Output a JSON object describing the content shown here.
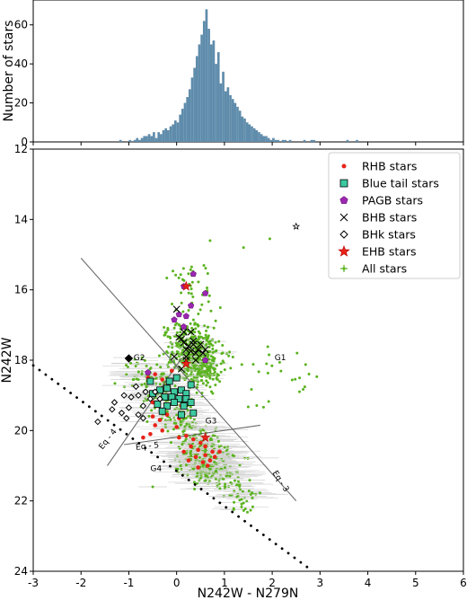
{
  "chart_data": [
    {
      "type": "histogram",
      "ylabel": "Number of stars",
      "ylim": [
        0,
        70
      ],
      "xlim": [
        -3,
        6
      ],
      "yticks": [
        "0",
        "20",
        "40",
        "60"
      ],
      "bin_start": -1.2,
      "bin_width": 0.05,
      "counts": [
        1,
        0,
        0,
        0,
        1,
        0,
        1,
        2,
        1,
        2,
        3,
        3,
        4,
        3,
        5,
        2,
        5,
        4,
        6,
        7,
        6,
        8,
        9,
        11,
        10,
        14,
        17,
        20,
        23,
        27,
        33,
        38,
        44,
        50,
        55,
        62,
        68,
        58,
        50,
        52,
        40,
        46,
        30,
        36,
        26,
        28,
        24,
        22,
        20,
        18,
        16,
        13,
        12,
        10,
        9,
        8,
        7,
        6,
        5,
        4,
        3,
        3,
        2,
        1,
        2,
        1,
        1,
        0,
        1,
        1,
        0,
        1,
        0,
        0,
        0,
        0,
        0,
        1,
        0,
        0,
        1,
        1,
        0,
        0,
        0,
        0,
        0,
        0,
        0,
        0,
        0,
        0,
        0,
        0,
        0,
        1,
        0,
        0,
        0,
        1
      ],
      "color": "#5f8cab"
    },
    {
      "type": "scatter",
      "xlabel": "N242W - N279N",
      "ylabel": "N242W",
      "xlim": [
        -3,
        6
      ],
      "ylim": [
        24,
        12
      ],
      "xticks": [
        "-3",
        "-2",
        "-1",
        "0",
        "1",
        "2",
        "3",
        "4",
        "5",
        "6"
      ],
      "yticks": [
        "12",
        "14",
        "16",
        "18",
        "20",
        "22",
        "24"
      ],
      "legend_position": "top-right",
      "legend": [
        {
          "label": "RHB stars",
          "marker": "dot",
          "color": "#e8231a"
        },
        {
          "label": "Blue tail stars",
          "marker": "square",
          "color": "#3cc9a0"
        },
        {
          "label": "PAGB stars",
          "marker": "pentagon",
          "color": "#9b27b0"
        },
        {
          "label": "BHB stars",
          "marker": "x",
          "color": "#000000"
        },
        {
          "label": "BHk stars",
          "marker": "diamond",
          "color": "#000000"
        },
        {
          "label": "EHB stars",
          "marker": "star",
          "color": "#e8231a"
        },
        {
          "label": "All stars",
          "marker": "plus",
          "color": "#5ab31e"
        }
      ],
      "annotations": [
        {
          "text": "G1",
          "x": 2.05,
          "y": 18.0
        },
        {
          "text": "G2",
          "x": -0.9,
          "y": 18.0
        },
        {
          "text": "G3",
          "x": 0.6,
          "y": 19.8
        },
        {
          "text": "G4",
          "x": -0.55,
          "y": 21.15
        },
        {
          "text": "Eq - 4",
          "x": -1.55,
          "y": 20.55
        },
        {
          "text": "Eq - 5",
          "x": -0.85,
          "y": 20.55
        },
        {
          "text": "Eq - 3",
          "x": 2.0,
          "y": 21.2
        }
      ],
      "lines": [
        {
          "name": "eq-3-line",
          "x": [
            -2.0,
            2.5
          ],
          "y": [
            15.1,
            22.0
          ]
        },
        {
          "name": "eq-4-line",
          "x": [
            -1.45,
            0.1
          ],
          "y": [
            21.0,
            17.95
          ]
        },
        {
          "name": "eq-5-line",
          "x": [
            -1.1,
            1.75
          ],
          "y": [
            20.4,
            19.85
          ]
        },
        {
          "name": "limit-dotted-line",
          "x": [
            -3.0,
            2.85
          ],
          "y": [
            18.15,
            24.0
          ]
        }
      ],
      "RHB": [
        [
          0.05,
          20.2
        ],
        [
          0.2,
          20.15
        ],
        [
          0.35,
          20.25
        ],
        [
          0.5,
          20.35
        ],
        [
          0.6,
          20.45
        ],
        [
          0.75,
          20.6
        ],
        [
          0.45,
          20.55
        ],
        [
          0.3,
          20.45
        ],
        [
          0.15,
          20.6
        ],
        [
          0.6,
          20.7
        ],
        [
          0.8,
          20.75
        ],
        [
          0.4,
          20.75
        ],
        [
          0.55,
          20.9
        ],
        [
          0.7,
          20.85
        ],
        [
          0.25,
          20.85
        ],
        [
          0.9,
          20.6
        ],
        [
          0.65,
          21.0
        ],
        [
          0.45,
          21.05
        ],
        [
          -0.5,
          19.6
        ],
        [
          -0.35,
          19.7
        ],
        [
          -0.2,
          19.55
        ],
        [
          0.05,
          19.65
        ],
        [
          -0.45,
          19.85
        ],
        [
          -0.3,
          20.0
        ],
        [
          0.0,
          19.9
        ],
        [
          -0.7,
          20.2
        ],
        [
          -0.55,
          20.1
        ],
        [
          -0.6,
          18.5
        ],
        [
          -0.45,
          18.4
        ],
        [
          -0.3,
          18.55
        ],
        [
          -0.1,
          18.3
        ],
        [
          -0.5,
          19.2
        ],
        [
          0.1,
          19.3
        ]
      ],
      "BlueTail": [
        [
          -0.35,
          18.85
        ],
        [
          -0.2,
          18.8
        ],
        [
          -0.05,
          18.9
        ],
        [
          0.1,
          18.85
        ],
        [
          0.2,
          18.95
        ],
        [
          -0.25,
          19.05
        ],
        [
          -0.1,
          19.05
        ],
        [
          0.05,
          19.1
        ],
        [
          0.2,
          19.1
        ],
        [
          0.3,
          19.2
        ],
        [
          -0.4,
          19.25
        ],
        [
          -0.2,
          19.3
        ],
        [
          -0.05,
          19.2
        ],
        [
          0.15,
          19.3
        ],
        [
          -0.3,
          19.45
        ],
        [
          -0.5,
          18.95
        ],
        [
          0.3,
          18.7
        ],
        [
          -0.15,
          18.6
        ],
        [
          -0.55,
          18.6
        ],
        [
          0.0,
          18.5
        ],
        [
          0.35,
          19.5
        ],
        [
          0.1,
          19.55
        ]
      ],
      "PAGB": [
        [
          0.15,
          15.9
        ],
        [
          0.35,
          15.55
        ],
        [
          0.6,
          16.1
        ],
        [
          0.3,
          16.45
        ],
        [
          0.05,
          16.7
        ],
        [
          0.2,
          16.75
        ],
        [
          -0.05,
          16.85
        ],
        [
          0.15,
          17.05
        ],
        [
          0.6,
          18.0
        ],
        [
          -0.6,
          18.35
        ]
      ],
      "BHB": [
        [
          0.25,
          17.6
        ],
        [
          0.35,
          17.55
        ],
        [
          0.45,
          17.7
        ],
        [
          0.3,
          17.75
        ],
        [
          0.4,
          17.8
        ],
        [
          0.2,
          17.7
        ],
        [
          0.5,
          17.55
        ],
        [
          0.15,
          17.5
        ],
        [
          0.1,
          17.4
        ],
        [
          0.3,
          17.2
        ],
        [
          0.55,
          17.8
        ],
        [
          0.2,
          17.9
        ],
        [
          0.4,
          18.0
        ],
        [
          0.0,
          16.55
        ],
        [
          0.05,
          17.35
        ],
        [
          0.15,
          17.2
        ],
        [
          0.35,
          17.45
        ],
        [
          -0.05,
          17.9
        ],
        [
          0.2,
          18.0
        ],
        [
          0.6,
          17.7
        ],
        [
          0.1,
          18.25
        ]
      ],
      "BHk": [
        [
          -0.85,
          18.75
        ],
        [
          -0.65,
          18.9
        ],
        [
          -0.8,
          19.0
        ],
        [
          -0.55,
          19.1
        ],
        [
          -0.95,
          19.05
        ],
        [
          -0.45,
          18.9
        ],
        [
          -0.35,
          19.1
        ],
        [
          -0.7,
          19.3
        ],
        [
          -1.1,
          19.0
        ],
        [
          -1.3,
          19.2
        ],
        [
          -1.0,
          19.35
        ],
        [
          -0.8,
          19.55
        ],
        [
          -1.15,
          19.5
        ],
        [
          -1.35,
          19.4
        ],
        [
          -1.05,
          19.65
        ],
        [
          -0.7,
          19.65
        ],
        [
          -1.65,
          19.75
        ]
      ],
      "BHk_filled": [
        [
          -1.0,
          17.95
        ]
      ],
      "EHB": [
        [
          0.2,
          18.1
        ],
        [
          0.2,
          15.9
        ],
        [
          0.6,
          20.2
        ]
      ],
      "EHB_open": [
        [
          2.5,
          14.2
        ]
      ],
      "AllStars_seed": 7,
      "AllStars_note": ""
    }
  ]
}
